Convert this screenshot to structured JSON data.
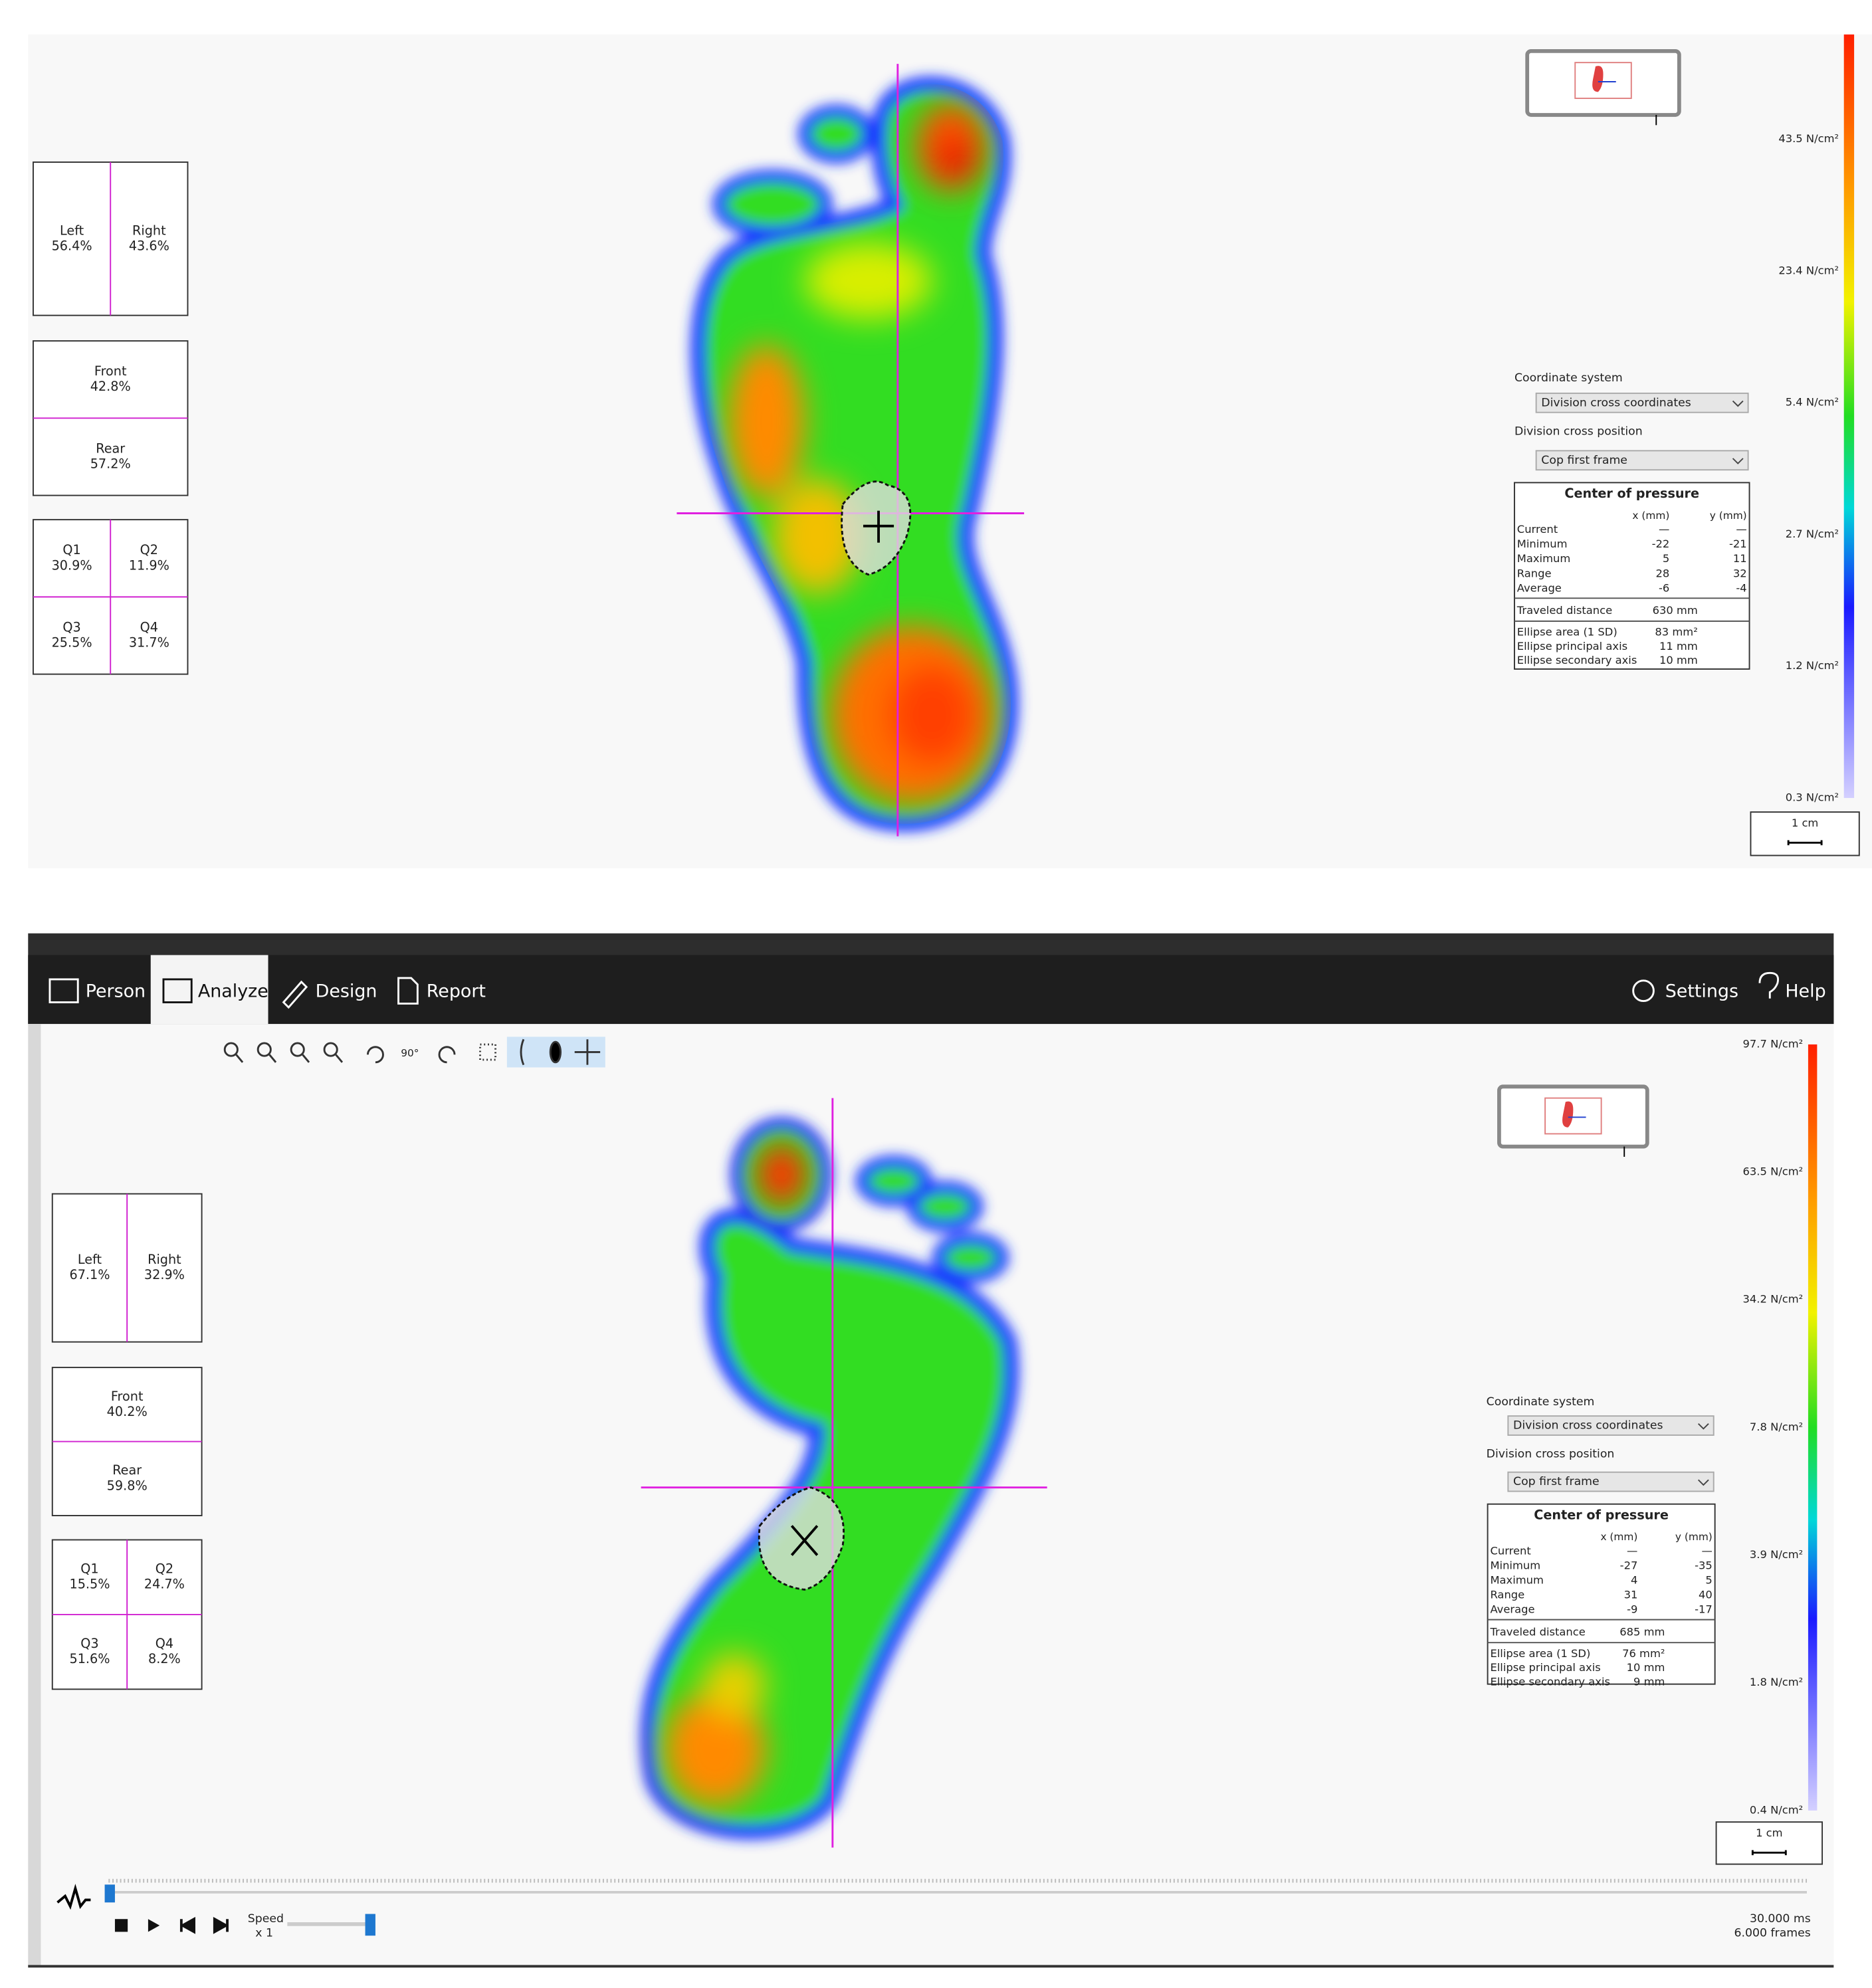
{
  "panels": [
    {
      "balance_left_right": [
        {
          "label": "Left",
          "value": "56.4%"
        },
        {
          "label": "Right",
          "value": "43.6%"
        }
      ],
      "balance_front_rear": [
        {
          "label": "Front",
          "value": "42.8%"
        },
        {
          "label": "Rear",
          "value": "57.2%"
        }
      ],
      "quadrants": [
        {
          "label": "Q1",
          "value": "30.9%"
        },
        {
          "label": "Q2",
          "value": "11.9%"
        },
        {
          "label": "Q3",
          "value": "25.5%"
        },
        {
          "label": "Q4",
          "value": "31.7%"
        }
      ],
      "coordinate_system": {
        "label": "Coordinate system",
        "value": "Division cross coordinates"
      },
      "division_cross_position": {
        "label": "Division cross position",
        "value": "Cop first frame"
      },
      "center_of_pressure": {
        "title": "Center of pressure",
        "columns": [
          "x (mm)",
          "y (mm)"
        ],
        "rows": [
          [
            "Current",
            "—",
            "—"
          ],
          [
            "Minimum",
            "-22",
            "-21"
          ],
          [
            "Maximum",
            "5",
            "11"
          ],
          [
            "Range",
            "28",
            "32"
          ],
          [
            "Average",
            "-6",
            "-4"
          ]
        ],
        "distance": [
          "Traveled distance",
          "630 mm"
        ],
        "ellipse": [
          [
            "Ellipse area (1 SD)",
            "83 mm²"
          ],
          [
            "Ellipse principal axis",
            "11 mm"
          ],
          [
            "Ellipse secondary axis",
            "10 mm"
          ]
        ]
      },
      "scale_labels": [
        "43.5 N/cm²",
        "23.4 N/cm²",
        "5.4 N/cm²",
        "2.7 N/cm²",
        "1.2 N/cm²",
        "0.3 N/cm²"
      ],
      "scale_bar": "1 cm"
    },
    {
      "balance_left_right": [
        {
          "label": "Left",
          "value": "67.1%"
        },
        {
          "label": "Right",
          "value": "32.9%"
        }
      ],
      "balance_front_rear": [
        {
          "label": "Front",
          "value": "40.2%"
        },
        {
          "label": "Rear",
          "value": "59.8%"
        }
      ],
      "quadrants": [
        {
          "label": "Q1",
          "value": "15.5%"
        },
        {
          "label": "Q2",
          "value": "24.7%"
        },
        {
          "label": "Q3",
          "value": "51.6%"
        },
        {
          "label": "Q4",
          "value": "8.2%"
        }
      ],
      "coordinate_system": {
        "label": "Coordinate system",
        "value": "Division cross coordinates"
      },
      "division_cross_position": {
        "label": "Division cross position",
        "value": "Cop first frame"
      },
      "center_of_pressure": {
        "title": "Center of pressure",
        "columns": [
          "x (mm)",
          "y (mm)"
        ],
        "rows": [
          [
            "Current",
            "—",
            "—"
          ],
          [
            "Minimum",
            "-27",
            "-35"
          ],
          [
            "Maximum",
            "4",
            "5"
          ],
          [
            "Range",
            "31",
            "40"
          ],
          [
            "Average",
            "-9",
            "-17"
          ]
        ],
        "distance": [
          "Traveled distance",
          "685 mm"
        ],
        "ellipse": [
          [
            "Ellipse area (1 SD)",
            "76 mm²"
          ],
          [
            "Ellipse principal axis",
            "10 mm"
          ],
          [
            "Ellipse secondary axis",
            "9 mm"
          ]
        ]
      },
      "scale_labels": [
        "97.7 N/cm²",
        "63.5 N/cm²",
        "34.2 N/cm²",
        "7.8 N/cm²",
        "3.9 N/cm²",
        "1.8 N/cm²",
        "0.4 N/cm²"
      ],
      "scale_bar": "1 cm"
    }
  ],
  "toolbar": {
    "tabs": [
      "Person",
      "Analyze",
      "Design",
      "Report"
    ],
    "settings": "Settings",
    "help": "Help",
    "rotate": "90°"
  },
  "playback": {
    "speed_label": "Speed",
    "speed_value": "x 1",
    "duration": "30.000 ms",
    "frames": "6.000 frames"
  }
}
